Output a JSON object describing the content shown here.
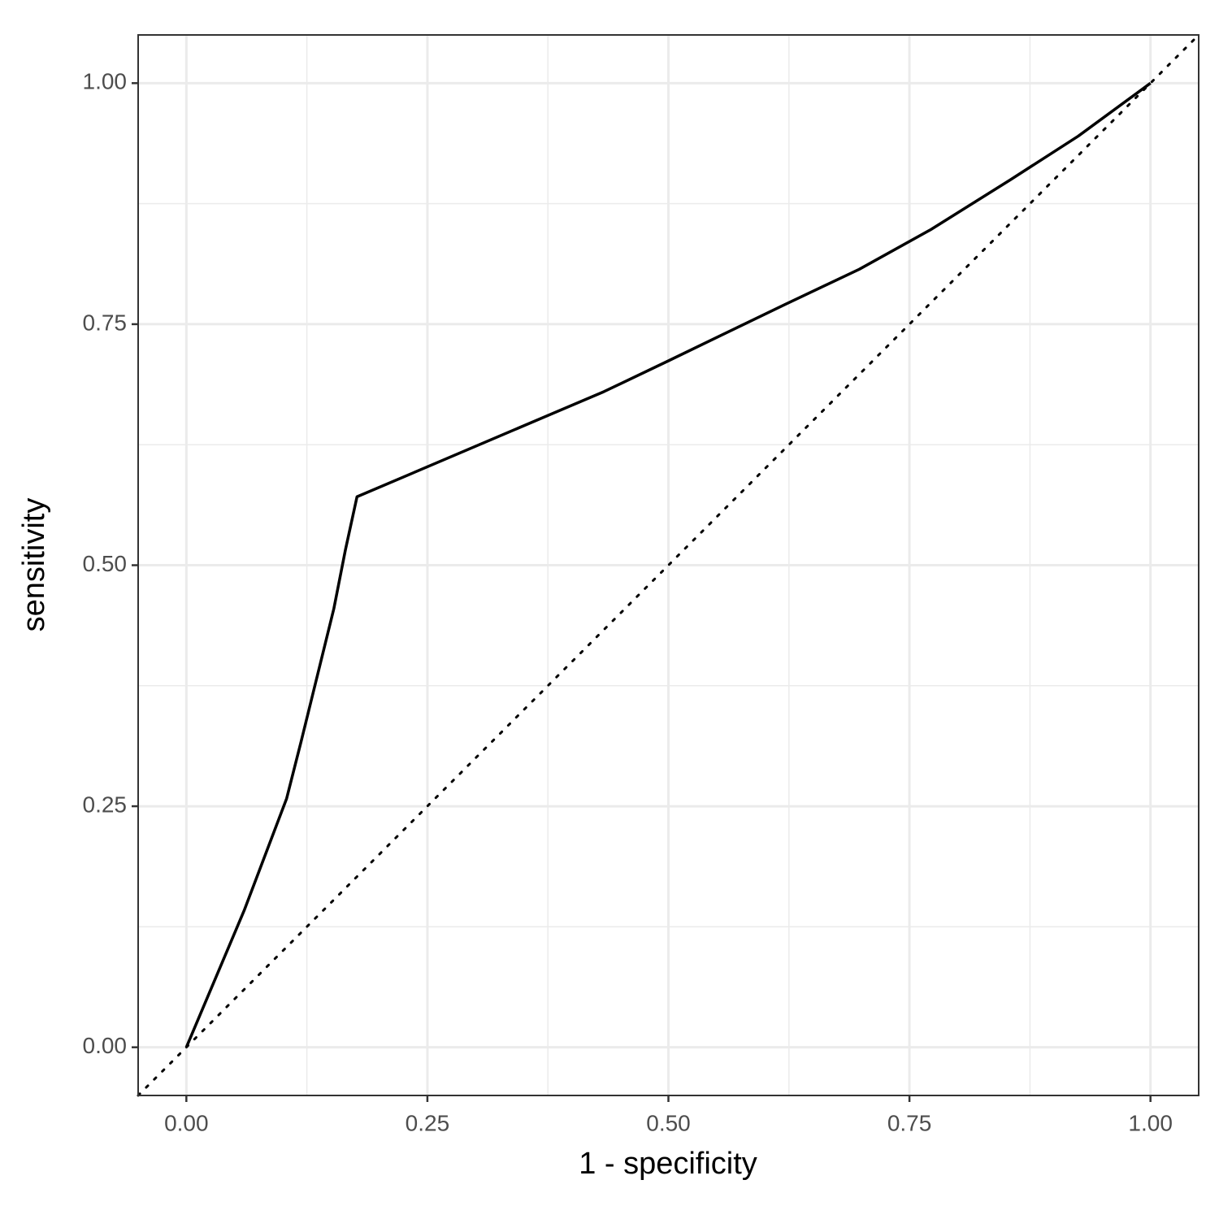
{
  "chart_data": {
    "type": "line",
    "xlabel": "1 - specificity",
    "ylabel": "sensitivity",
    "x": [
      0,
      0.06,
      0.104,
      0.119,
      0.153,
      0.165,
      0.177,
      0.433,
      0.5,
      0.62,
      0.698,
      0.772,
      0.855,
      0.925,
      1
    ],
    "series": [
      {
        "color": "#000000",
        "values": [
          0,
          0.142,
          0.258,
          0.317,
          0.455,
          0.516,
          0.571,
          0.68,
          0.712,
          0.77,
          0.807,
          0.848,
          0.9,
          0.945,
          1
        ]
      }
    ],
    "xlim": [
      -0.05,
      1.05
    ],
    "ylim": [
      -0.05,
      1.05
    ],
    "xticks": [
      {
        "value": 0,
        "label": "0.00"
      },
      0.25,
      {
        "value": 0.5,
        "label": "0.50"
      },
      0.75,
      {
        "value": 1,
        "label": "1.00"
      }
    ],
    "yticks": [
      {
        "value": 0,
        "label": "0.00"
      },
      0.25,
      {
        "value": 0.5,
        "label": "0.50"
      },
      0.75,
      {
        "value": 1,
        "label": "1.00"
      }
    ],
    "grid": true,
    "diagonal": true
  }
}
